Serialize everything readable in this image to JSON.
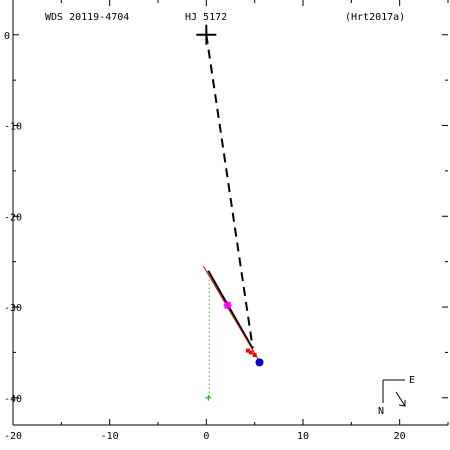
{
  "header": {
    "wds": "WDS 20119-4704",
    "discoverer": "HJ 5172",
    "reference": "(Hrt2017a)"
  },
  "compass": {
    "east_label": "E",
    "north_label": "N"
  },
  "colors": {
    "axes": "#000000",
    "orbit": "#cc0000",
    "fit_line": "#000000",
    "dashed_line": "#000000",
    "dotted_line": "#00aa00",
    "measure_marker": "#ff00ff",
    "red_marker": "#ff0000",
    "last_point": "#0000cc"
  },
  "chart_data": {
    "type": "scatter",
    "title": "",
    "xlabel": "",
    "ylabel": "",
    "xlim": [
      -20,
      25
    ],
    "ylim": [
      -43,
      3.5
    ],
    "x_ticks": [
      -20,
      -10,
      0,
      10,
      20
    ],
    "x_tick_labels": [
      "-20",
      "-10",
      "0",
      "10",
      "20"
    ],
    "y_ticks": [
      0,
      -10,
      -20,
      -30,
      -40
    ],
    "y_tick_labels": [
      "0",
      "-10",
      "-20",
      "-30",
      "-40"
    ],
    "primary": {
      "x": 0,
      "y": 0,
      "marker": "plus"
    },
    "series": [
      {
        "kind": "line",
        "style": "dashed",
        "points": [
          [
            0,
            0
          ],
          [
            4.8,
            -34.5
          ]
        ]
      },
      {
        "kind": "line",
        "style": "solid-thick",
        "points": [
          [
            0.2,
            -26.0
          ],
          [
            4.8,
            -34.6
          ]
        ]
      },
      {
        "kind": "line",
        "style": "solid-thin-red",
        "points": [
          [
            -0.3,
            -25.5
          ],
          [
            5.5,
            -36.0
          ]
        ]
      },
      {
        "kind": "line",
        "style": "dotted-green",
        "points": [
          [
            0.3,
            -27.0
          ],
          [
            0.3,
            -40.0
          ]
        ]
      },
      {
        "kind": "point",
        "marker": "star-magenta",
        "points": [
          [
            2.2,
            -29.8
          ]
        ]
      },
      {
        "kind": "point",
        "marker": "red-squares",
        "points": [
          [
            4.6,
            -35.0
          ],
          [
            5.0,
            -35.3
          ],
          [
            4.3,
            -34.8
          ]
        ]
      },
      {
        "kind": "point",
        "marker": "blue-dot",
        "points": [
          [
            5.5,
            -36.1
          ]
        ]
      },
      {
        "kind": "point",
        "marker": "green-plus",
        "points": [
          [
            0.2,
            -40.0
          ]
        ]
      }
    ]
  }
}
